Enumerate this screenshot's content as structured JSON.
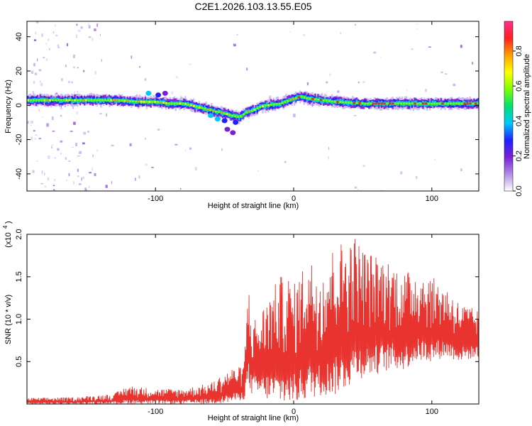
{
  "title": "C2E1.2026.103.13.55.E05",
  "colors": {
    "snr_line": "#e8332e",
    "axes": "#000000",
    "colormap": [
      "#ffffff",
      "#b08ce6",
      "#7a1fd8",
      "#2020ff",
      "#00c8ff",
      "#00e070",
      "#80ff00",
      "#ffff00",
      "#ffa000",
      "#ff2020",
      "#ff3090"
    ]
  },
  "chart_data": [
    {
      "type": "heatmap",
      "title": "C2E1.2026.103.13.55.E05",
      "xlabel": "Height of straight line (km)",
      "ylabel": "Frequency (Hz)",
      "xlim": [
        -193,
        134
      ],
      "ylim": [
        -50,
        49
      ],
      "xticks": [
        -100,
        0,
        100
      ],
      "yticks": [
        -40,
        -20,
        0,
        20,
        40
      ],
      "colorbar": {
        "label": "Normalized spectral amplitude",
        "range": [
          0,
          0.97
        ],
        "ticks": [
          0.0,
          0.2,
          0.4,
          0.6,
          0.8
        ]
      },
      "ridge": {
        "description_points_x": [
          -193,
          -160,
          -130,
          -110,
          -100,
          -90,
          -80,
          -70,
          -60,
          -55,
          -50,
          -45,
          -40,
          -35,
          -30,
          -25,
          -20,
          -10,
          0,
          5,
          10,
          20,
          30,
          50,
          70,
          90,
          110,
          134
        ],
        "frequency_hz": [
          3,
          3,
          3,
          2,
          2,
          1,
          1,
          -1,
          -3,
          -4,
          -5,
          -6,
          -7,
          -4,
          -3,
          -1,
          0,
          1,
          4,
          5,
          4,
          3,
          2,
          1,
          1,
          1,
          1,
          1
        ]
      }
    },
    {
      "type": "line",
      "xlabel": "Height of straight line (km)",
      "ylabel": "SNR (10 * v/v)",
      "yscale_label": "(x10",
      "yscale_exp": "4",
      "xlim": [
        -193,
        134
      ],
      "ylim": [
        0,
        2.0
      ],
      "xticks": [
        -100,
        0,
        100
      ],
      "yticks": [
        0.5,
        1.0,
        1.5,
        2.0
      ],
      "series": [
        {
          "name": "SNR",
          "envelope_x": [
            -193,
            -160,
            -130,
            -120,
            -100,
            -80,
            -60,
            -45,
            -36,
            -33,
            -30,
            -25,
            -20,
            -10,
            -5,
            0,
            10,
            20,
            30,
            40,
            45,
            50,
            60,
            70,
            80,
            90,
            100,
            110,
            120,
            134
          ],
          "envelope_max": [
            0.07,
            0.08,
            0.12,
            0.22,
            0.18,
            0.18,
            0.25,
            0.42,
            0.45,
            1.45,
            1.05,
            1.0,
            1.25,
            1.5,
            1.55,
            1.4,
            1.75,
            1.6,
            1.9,
            1.95,
            2.0,
            1.85,
            1.75,
            1.7,
            1.55,
            1.6,
            1.5,
            1.4,
            1.2,
            1.1
          ],
          "envelope_min": [
            0.0,
            0.0,
            0.0,
            0.0,
            0.0,
            0.0,
            0.0,
            0.02,
            0.05,
            0.2,
            0.1,
            0.1,
            0.05,
            0.0,
            0.0,
            0.0,
            0.05,
            0.1,
            0.1,
            0.2,
            0.3,
            0.3,
            0.35,
            0.4,
            0.4,
            0.5,
            0.5,
            0.55,
            0.5,
            0.55
          ]
        }
      ]
    }
  ]
}
